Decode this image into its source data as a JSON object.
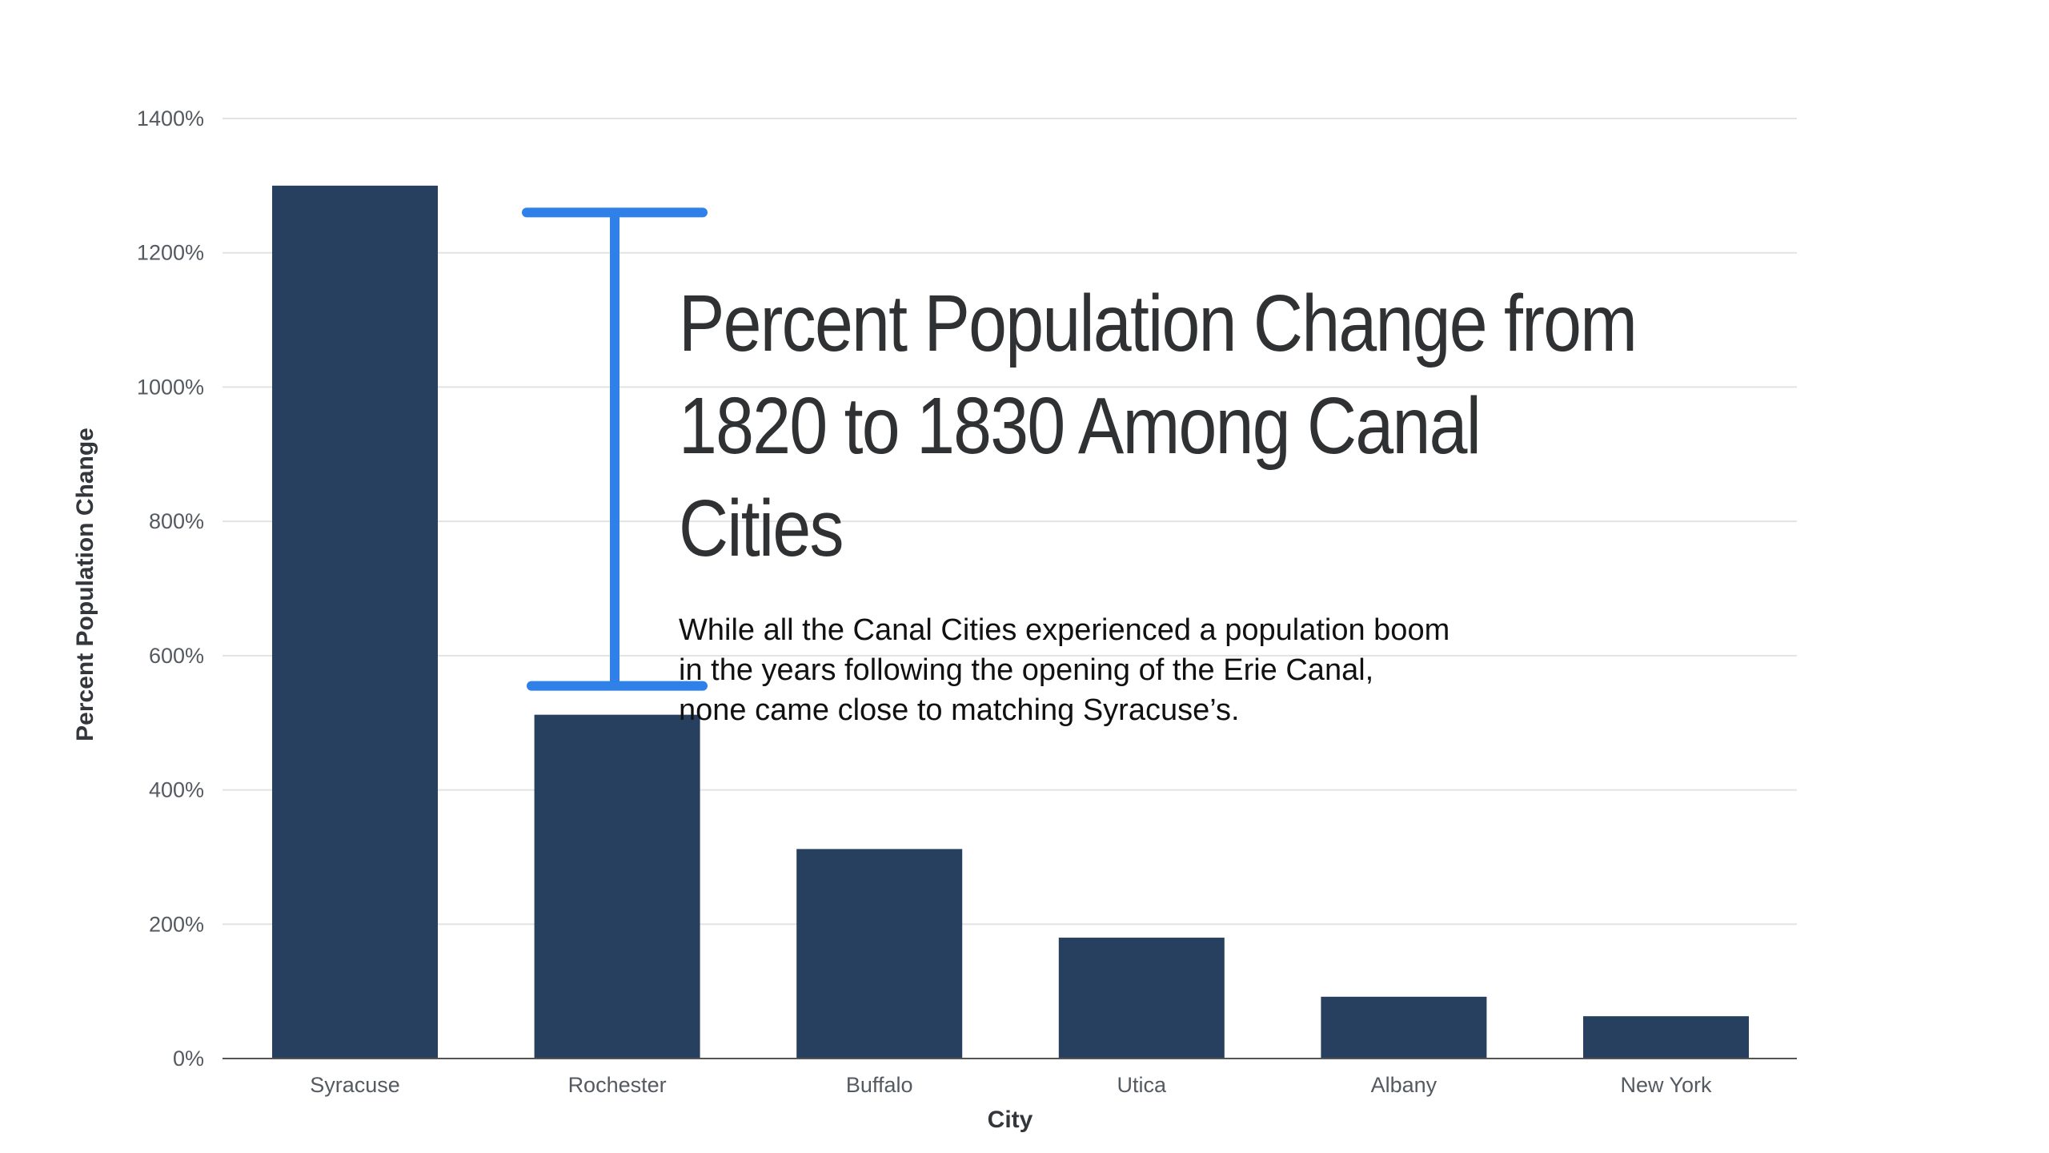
{
  "chart_data": {
    "type": "bar",
    "title_lines": [
      "Percent Population Change from",
      "1820 to 1830 Among Canal Cities"
    ],
    "subtitle_lines": [
      "While all the Canal Cities experienced a population boom",
      "in the years following the opening of the Erie Canal,",
      "none came close to matching Syracuse’s."
    ],
    "xlabel": "City",
    "ylabel": "Percent Population Change",
    "categories": [
      "Syracuse",
      "Rochester",
      "Buffalo",
      "Utica",
      "Albany",
      "New York"
    ],
    "values": [
      1300,
      512,
      312,
      180,
      92,
      63
    ],
    "ylim": [
      0,
      1400
    ],
    "yticks": [
      0,
      200,
      400,
      600,
      800,
      1000,
      1200,
      1400
    ],
    "ytick_labels": [
      "0%",
      "200%",
      "400%",
      "600%",
      "800%",
      "1000%",
      "1200%",
      "1400%"
    ],
    "grid": true,
    "bar_color": "#27405f",
    "gridline_color": "#e3e3e3",
    "axis_color": "#555555",
    "annotation": {
      "type": "difference-bracket",
      "from_value": 1260,
      "to_value": 555,
      "color": "#2f80e8"
    }
  }
}
